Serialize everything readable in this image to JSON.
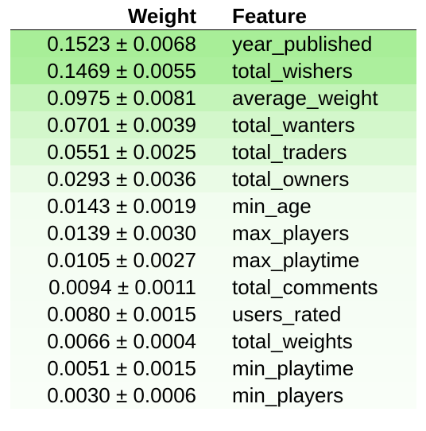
{
  "header": {
    "weight_label": "Weight",
    "feature_label": "Feature"
  },
  "rows": [
    {
      "weight": "0.1523 ± 0.0068",
      "feature": "year_published",
      "bg": "#a8ee98"
    },
    {
      "weight": "0.1469 ± 0.0055",
      "feature": "total_wishers",
      "bg": "#acef9d"
    },
    {
      "weight": "0.0975 ± 0.0081",
      "feature": "average_weight",
      "bg": "#c4f4b9"
    },
    {
      "weight": "0.0701 ± 0.0039",
      "feature": "total_wanters",
      "bg": "#d3f7cb"
    },
    {
      "weight": "0.0551 ± 0.0025",
      "feature": "total_traders",
      "bg": "#dcf9d6"
    },
    {
      "weight": "0.0293 ± 0.0036",
      "feature": "total_owners",
      "bg": "#eafbe6"
    },
    {
      "weight": "0.0143 ± 0.0019",
      "feature": "min_age",
      "bg": "#f2fdf0"
    },
    {
      "weight": "0.0139 ± 0.0030",
      "feature": "max_players",
      "bg": "#f3fdf1"
    },
    {
      "weight": "0.0105 ± 0.0027",
      "feature": "max_playtime",
      "bg": "#f5fdf3"
    },
    {
      "weight": "0.0094 ± 0.0011",
      "feature": "total_comments",
      "bg": "#f5fdf4"
    },
    {
      "weight": "0.0080 ± 0.0015",
      "feature": "users_rated",
      "bg": "#f6fdf5"
    },
    {
      "weight": "0.0066 ± 0.0004",
      "feature": "total_weights",
      "bg": "#f7fef6"
    },
    {
      "weight": "0.0051 ± 0.0015",
      "feature": "min_playtime",
      "bg": "#f8fef7"
    },
    {
      "weight": "0.0030 ± 0.0006",
      "feature": "min_players",
      "bg": "#f9fef8"
    }
  ]
}
